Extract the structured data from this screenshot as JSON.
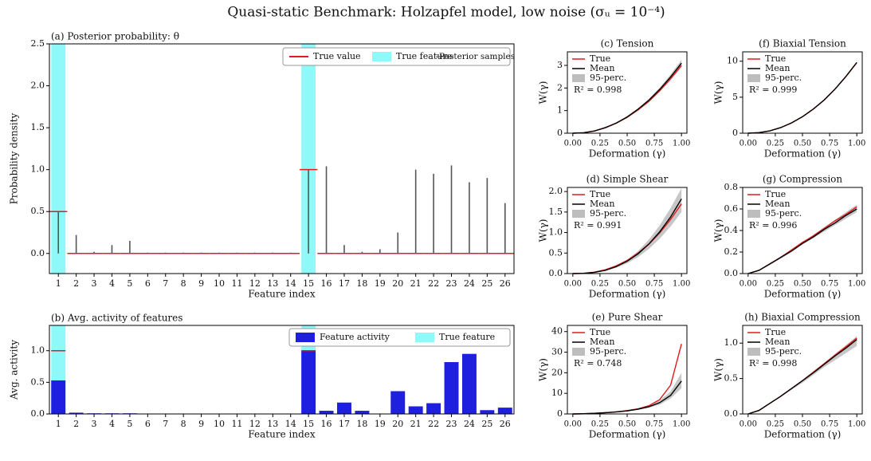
{
  "title": "Quasi-static Benchmark: Holzapfel model, low noise (σᵤ = 10⁻⁴)",
  "chart_data": [
    {
      "type": "density",
      "title": "(a) Posterior  probability: θ",
      "xlabel": "Feature index",
      "ylabel": "Probability density",
      "categories": [
        "1",
        "2",
        "3",
        "4",
        "5",
        "6",
        "7",
        "8",
        "9",
        "10",
        "11",
        "12",
        "13",
        "14",
        "15",
        "16",
        "17",
        "18",
        "19",
        "20",
        "21",
        "22",
        "23",
        "24",
        "25",
        "26"
      ],
      "ylim": [
        -0.24,
        2.5
      ],
      "yticks": [
        {
          "value": 0,
          "label": "0.0"
        },
        {
          "value": 0.5,
          "label": "0.5"
        },
        {
          "value": 1,
          "label": "1.0"
        },
        {
          "value": 1.5,
          "label": "1.5"
        },
        {
          "value": 2,
          "label": "2.0"
        },
        {
          "value": 2.5,
          "label": "2.5"
        }
      ],
      "true_features": {
        "name": "True feature",
        "color": "#8ff8f8",
        "x": [
          1,
          15
        ]
      },
      "series": [
        {
          "name": "True value",
          "color": "#e41a1c",
          "values": [
            0.5,
            0,
            0,
            0,
            0,
            0,
            0,
            0,
            0,
            0,
            0,
            0,
            0,
            0,
            1.0,
            0,
            0,
            0,
            0,
            0,
            0,
            0,
            0,
            0,
            0,
            0
          ]
        },
        {
          "name": "Posterior samples",
          "color": "#555555",
          "values": [
            0.5,
            0.22,
            0.02,
            0.1,
            0.15,
            0.01,
            0.01,
            0.01,
            0.01,
            0.01,
            0.01,
            0.01,
            0.01,
            0.01,
            1.0,
            1.04,
            0.1,
            0.02,
            0.05,
            0.25,
            1.0,
            0.95,
            1.05,
            0.85,
            0.9,
            0.6
          ]
        }
      ],
      "legend": "upper right"
    },
    {
      "type": "bar",
      "title": "(b) Avg. activity of features",
      "xlabel": "Feature index",
      "ylabel": "Avg. activity",
      "categories": [
        "1",
        "2",
        "3",
        "4",
        "5",
        "6",
        "7",
        "8",
        "9",
        "10",
        "11",
        "12",
        "13",
        "14",
        "15",
        "16",
        "17",
        "18",
        "19",
        "20",
        "21",
        "22",
        "23",
        "24",
        "25",
        "26"
      ],
      "ylim": [
        0,
        1.4
      ],
      "yticks": [
        {
          "value": 0,
          "label": "0.0"
        },
        {
          "value": 0.5,
          "label": "0.5"
        },
        {
          "value": 1,
          "label": "1.0"
        }
      ],
      "true_features": {
        "name": "True feature",
        "color": "#8ff8f8",
        "x": [
          1,
          15
        ]
      },
      "true_values": {
        "color": "#e41a1c",
        "values": [
          1,
          null,
          null,
          null,
          null,
          null,
          null,
          null,
          null,
          null,
          null,
          null,
          null,
          null,
          1,
          null,
          null,
          null,
          null,
          null,
          null,
          null,
          null,
          null,
          null,
          null
        ]
      },
      "series": [
        {
          "name": "Feature activity",
          "color": "#1f1fdf",
          "values": [
            0.53,
            0.02,
            0.01,
            0.01,
            0.01,
            0,
            0,
            0,
            0,
            0,
            0,
            0,
            0,
            0,
            1.0,
            0.05,
            0.18,
            0.05,
            0,
            0.36,
            0.12,
            0.17,
            0.82,
            0.95,
            0.06,
            0.1
          ]
        }
      ],
      "legend": "upper right"
    },
    {
      "type": "line",
      "title": "(c) Tension",
      "xlabel": "Deformation (γ)",
      "ylabel": "W(γ)",
      "annotation": "R² = 0.998",
      "x": [
        0,
        0.1,
        0.2,
        0.3,
        0.4,
        0.5,
        0.6,
        0.7,
        0.8,
        0.9,
        1.0
      ],
      "xlim": [
        -0.05,
        1.05
      ],
      "xticks": [
        {
          "value": 0,
          "label": "0.00"
        },
        {
          "value": 0.25,
          "label": "0.25"
        },
        {
          "value": 0.5,
          "label": "0.50"
        },
        {
          "value": 0.75,
          "label": "0.75"
        },
        {
          "value": 1,
          "label": "1.00"
        }
      ],
      "ylim": [
        0,
        3.6
      ],
      "yticks": [
        0,
        1,
        2,
        3
      ],
      "series": [
        {
          "name": "True",
          "color": "#e41a1c",
          "values": [
            0,
            0.02,
            0.1,
            0.24,
            0.44,
            0.7,
            1.03,
            1.41,
            1.88,
            2.41,
            3.0
          ]
        },
        {
          "name": "Mean",
          "color": "#000000",
          "values": [
            0,
            0.02,
            0.1,
            0.25,
            0.45,
            0.72,
            1.06,
            1.46,
            1.94,
            2.49,
            3.1
          ]
        }
      ],
      "band": {
        "name": "95-perc.",
        "color": "#bdbdbd",
        "lower": [
          0,
          0.02,
          0.09,
          0.23,
          0.43,
          0.68,
          1.0,
          1.38,
          1.83,
          2.35,
          2.92
        ],
        "upper": [
          0,
          0.03,
          0.11,
          0.26,
          0.47,
          0.75,
          1.1,
          1.52,
          2.02,
          2.6,
          3.25
        ]
      }
    },
    {
      "type": "line",
      "title": "(d) Simple Shear",
      "xlabel": "Deformation (γ)",
      "ylabel": "W(γ)",
      "annotation": "R² = 0.991",
      "x": [
        0,
        0.1,
        0.2,
        0.3,
        0.4,
        0.5,
        0.6,
        0.7,
        0.8,
        0.9,
        1.0
      ],
      "xlim": [
        -0.05,
        1.05
      ],
      "xticks": [
        {
          "value": 0,
          "label": "0.00"
        },
        {
          "value": 0.25,
          "label": "0.25"
        },
        {
          "value": 0.5,
          "label": "0.50"
        },
        {
          "value": 0.75,
          "label": "0.75"
        },
        {
          "value": 1,
          "label": "1.00"
        }
      ],
      "ylim": [
        0,
        2.1
      ],
      "yticks": [
        {
          "value": 0,
          "label": "0.0"
        },
        {
          "value": 0.5,
          "label": "0.5"
        },
        {
          "value": 1,
          "label": "1.0"
        },
        {
          "value": 1.5,
          "label": "1.5"
        },
        {
          "value": 2,
          "label": "2.0"
        }
      ],
      "series": [
        {
          "name": "True",
          "color": "#e41a1c",
          "values": [
            0,
            0.007,
            0.036,
            0.094,
            0.19,
            0.32,
            0.5,
            0.72,
            0.99,
            1.32,
            1.7
          ]
        },
        {
          "name": "Mean",
          "color": "#000000",
          "values": [
            0,
            0.005,
            0.03,
            0.08,
            0.17,
            0.3,
            0.48,
            0.72,
            1.02,
            1.38,
            1.82
          ]
        }
      ],
      "band": {
        "name": "95-perc.",
        "color": "#bdbdbd",
        "lower": [
          0,
          0.004,
          0.025,
          0.07,
          0.14,
          0.25,
          0.4,
          0.6,
          0.85,
          1.15,
          1.5
        ],
        "upper": [
          0,
          0.008,
          0.04,
          0.1,
          0.2,
          0.34,
          0.55,
          0.83,
          1.18,
          1.6,
          2.08
        ]
      }
    },
    {
      "type": "line",
      "title": "(e) Pure Shear",
      "xlabel": "Deformation (γ)",
      "ylabel": "W(γ)",
      "annotation": "R² = 0.748",
      "x": [
        0,
        0.1,
        0.2,
        0.3,
        0.4,
        0.5,
        0.6,
        0.7,
        0.8,
        0.9,
        1.0
      ],
      "xlim": [
        -0.05,
        1.05
      ],
      "xticks": [
        {
          "value": 0,
          "label": "0.00"
        },
        {
          "value": 0.25,
          "label": "0.25"
        },
        {
          "value": 0.5,
          "label": "0.50"
        },
        {
          "value": 0.75,
          "label": "0.75"
        },
        {
          "value": 1,
          "label": "1.00"
        }
      ],
      "ylim": [
        0,
        43
      ],
      "yticks": [
        0,
        10,
        20,
        30,
        40
      ],
      "series": [
        {
          "name": "True",
          "color": "#e41a1c",
          "values": [
            0,
            0.1,
            0.3,
            0.6,
            1.0,
            1.6,
            2.5,
            4.0,
            7.0,
            14.0,
            34.0
          ]
        },
        {
          "name": "Mean",
          "color": "#000000",
          "values": [
            0,
            0.1,
            0.3,
            0.6,
            1.0,
            1.5,
            2.3,
            3.5,
            5.5,
            9.0,
            16.0
          ]
        }
      ],
      "band": {
        "name": "95-perc.",
        "color": "#bdbdbd",
        "lower": [
          0,
          0.1,
          0.3,
          0.5,
          0.9,
          1.3,
          2.0,
          3.0,
          4.5,
          7.5,
          12.5
        ],
        "upper": [
          0,
          0.1,
          0.3,
          0.7,
          1.1,
          1.7,
          2.6,
          4.0,
          6.5,
          11.0,
          20.0
        ]
      }
    },
    {
      "type": "line",
      "title": "(f) Biaxial Tension",
      "xlabel": "Deformation (γ)",
      "ylabel": "W(γ)",
      "annotation": "R² = 0.999",
      "x": [
        0,
        0.1,
        0.2,
        0.3,
        0.4,
        0.5,
        0.6,
        0.7,
        0.8,
        0.9,
        1.0
      ],
      "xlim": [
        -0.05,
        1.05
      ],
      "xticks": [
        {
          "value": 0,
          "label": "0.00"
        },
        {
          "value": 0.25,
          "label": "0.25"
        },
        {
          "value": 0.5,
          "label": "0.50"
        },
        {
          "value": 0.75,
          "label": "0.75"
        },
        {
          "value": 1,
          "label": "1.00"
        }
      ],
      "ylim": [
        0,
        11.3
      ],
      "yticks": [
        0,
        5,
        10
      ],
      "series": [
        {
          "name": "True",
          "color": "#e41a1c",
          "values": [
            0,
            0.08,
            0.33,
            0.78,
            1.43,
            2.28,
            3.35,
            4.6,
            6.12,
            7.86,
            9.8
          ]
        },
        {
          "name": "Mean",
          "color": "#000000",
          "values": [
            0,
            0.08,
            0.33,
            0.78,
            1.44,
            2.29,
            3.36,
            4.62,
            6.14,
            7.89,
            9.83
          ]
        }
      ],
      "band": {
        "name": "95-perc.",
        "color": "#bdbdbd",
        "lower": [
          0,
          0.08,
          0.33,
          0.77,
          1.42,
          2.27,
          3.33,
          4.58,
          6.09,
          7.82,
          9.75
        ],
        "upper": [
          0,
          0.08,
          0.34,
          0.79,
          1.45,
          2.3,
          3.38,
          4.65,
          6.17,
          7.93,
          9.88
        ]
      }
    },
    {
      "type": "line",
      "title": "(g) Compression",
      "xlabel": "Deformation (γ)",
      "ylabel": "W(γ)",
      "annotation": "R² = 0.996",
      "x": [
        0,
        0.1,
        0.2,
        0.3,
        0.4,
        0.5,
        0.6,
        0.7,
        0.8,
        0.9,
        1.0
      ],
      "xlim": [
        -0.05,
        1.05
      ],
      "xticks": [
        {
          "value": 0,
          "label": "0.00"
        },
        {
          "value": 0.25,
          "label": "0.25"
        },
        {
          "value": 0.5,
          "label": "0.50"
        },
        {
          "value": 0.75,
          "label": "0.75"
        },
        {
          "value": 1,
          "label": "1.00"
        }
      ],
      "ylim": [
        0,
        0.8
      ],
      "yticks": [
        {
          "value": 0,
          "label": "0.0"
        },
        {
          "value": 0.2,
          "label": "0.2"
        },
        {
          "value": 0.4,
          "label": "0.4"
        },
        {
          "value": 0.6,
          "label": "0.6"
        },
        {
          "value": 0.8,
          "label": "0.8"
        }
      ],
      "series": [
        {
          "name": "True",
          "color": "#e41a1c",
          "values": [
            0,
            0.03,
            0.09,
            0.15,
            0.22,
            0.29,
            0.35,
            0.42,
            0.49,
            0.55,
            0.62
          ]
        },
        {
          "name": "Mean",
          "color": "#000000",
          "values": [
            0,
            0.03,
            0.09,
            0.15,
            0.21,
            0.28,
            0.34,
            0.41,
            0.47,
            0.54,
            0.6
          ]
        }
      ],
      "band": {
        "name": "95-perc.",
        "color": "#bdbdbd",
        "lower": [
          0,
          0.03,
          0.08,
          0.14,
          0.2,
          0.27,
          0.33,
          0.39,
          0.45,
          0.51,
          0.57
        ],
        "upper": [
          0,
          0.03,
          0.09,
          0.16,
          0.22,
          0.29,
          0.36,
          0.43,
          0.5,
          0.57,
          0.64
        ]
      }
    },
    {
      "type": "line",
      "title": "(h) Biaxial Compression",
      "xlabel": "Deformation (γ)",
      "ylabel": "W(γ)",
      "annotation": "R² = 0.998",
      "x": [
        0,
        0.1,
        0.2,
        0.3,
        0.4,
        0.5,
        0.6,
        0.7,
        0.8,
        0.9,
        1.0
      ],
      "xlim": [
        -0.05,
        1.05
      ],
      "xticks": [
        {
          "value": 0,
          "label": "0.00"
        },
        {
          "value": 0.25,
          "label": "0.25"
        },
        {
          "value": 0.5,
          "label": "0.50"
        },
        {
          "value": 0.75,
          "label": "0.75"
        },
        {
          "value": 1,
          "label": "1.00"
        }
      ],
      "ylim": [
        0,
        1.25
      ],
      "yticks": [
        {
          "value": 0,
          "label": "0.0"
        },
        {
          "value": 0.5,
          "label": "0.5"
        },
        {
          "value": 1,
          "label": "1.0"
        }
      ],
      "series": [
        {
          "name": "True",
          "color": "#e41a1c",
          "values": [
            0,
            0.05,
            0.15,
            0.25,
            0.36,
            0.47,
            0.59,
            0.71,
            0.83,
            0.95,
            1.07
          ]
        },
        {
          "name": "Mean",
          "color": "#000000",
          "values": [
            0,
            0.05,
            0.15,
            0.25,
            0.36,
            0.47,
            0.58,
            0.7,
            0.82,
            0.93,
            1.05
          ]
        }
      ],
      "band": {
        "name": "95-perc.",
        "color": "#bdbdbd",
        "lower": [
          0,
          0.05,
          0.14,
          0.24,
          0.34,
          0.44,
          0.55,
          0.66,
          0.76,
          0.86,
          0.96
        ],
        "upper": [
          0,
          0.05,
          0.15,
          0.26,
          0.37,
          0.48,
          0.6,
          0.72,
          0.85,
          0.97,
          1.1
        ]
      }
    }
  ]
}
